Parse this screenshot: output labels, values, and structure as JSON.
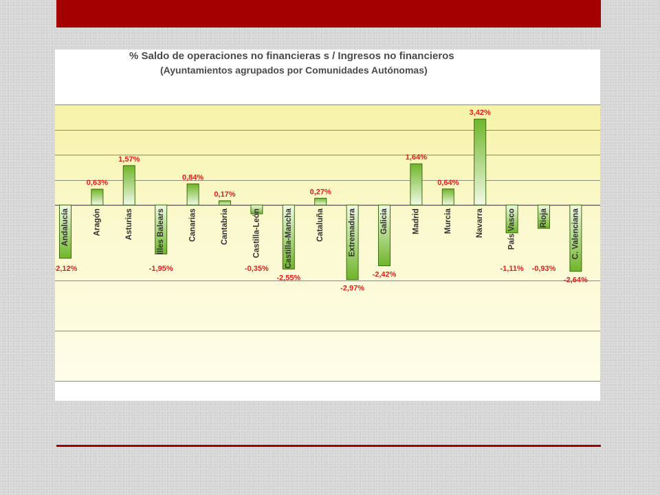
{
  "slide": {
    "accent_color": "#a50000"
  },
  "chart_data": {
    "type": "bar",
    "title": "% Saldo de operaciones no financieras s / Ingresos no financieros",
    "subtitle": "(Ayuntamientos agrupados por Comunidades Autónomas)",
    "categories": [
      "Andalucía",
      "Aragón",
      "Asturias",
      "Illes Balears",
      "Canarias",
      "Cantabria",
      "Castilla-León",
      "Castilla-Mancha",
      "Cataluña",
      "Extremadura",
      "Galicia",
      "Madrid",
      "Murcia",
      "Navarra",
      "País Vasco",
      "Rioja",
      "C. Valenciana"
    ],
    "values": [
      -2.12,
      0.63,
      1.57,
      -1.95,
      0.84,
      0.17,
      -0.35,
      -2.55,
      0.27,
      -2.97,
      -2.42,
      1.64,
      0.64,
      3.42,
      -1.11,
      -0.93,
      -2.64
    ],
    "data_labels": [
      "-2,12%",
      "0,63%",
      "1,57%",
      "-1,95%",
      "0,84%",
      "0,17%",
      "-0,35%",
      "-2,55%",
      "0,27%",
      "-2,97%",
      "-2,42%",
      "1,64%",
      "0,64%",
      "3,42%",
      "-1,11%",
      "-0,93%",
      "-2,64%"
    ],
    "ylim": [
      -7,
      4
    ],
    "gridlines": [
      4,
      3,
      2,
      1,
      0,
      -3,
      -5,
      -7
    ],
    "grid": true,
    "bar_color_top": "#6fb52a",
    "bar_color_bottom": "#f2f9e6",
    "bar_border": "#3d6b12",
    "label_color": "#e31b1b"
  }
}
